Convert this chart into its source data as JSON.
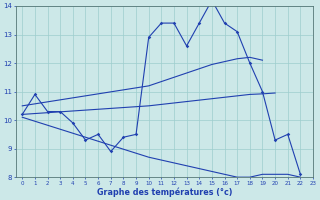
{
  "hours": [
    0,
    1,
    2,
    3,
    4,
    5,
    6,
    7,
    8,
    9,
    10,
    11,
    12,
    13,
    14,
    15,
    16,
    17,
    18,
    19,
    20,
    21,
    22,
    23
  ],
  "temp_actual": [
    10.2,
    10.9,
    10.3,
    10.3,
    9.9,
    9.3,
    9.5,
    8.9,
    9.4,
    9.5,
    12.9,
    13.4,
    13.4,
    12.6,
    13.4,
    14.2,
    13.4,
    13.1,
    12.0,
    11.0,
    9.3,
    9.5,
    8.1,
    null
  ],
  "trend_upper": [
    10.5,
    10.57,
    10.64,
    10.71,
    10.78,
    10.85,
    10.92,
    10.99,
    11.06,
    11.13,
    11.2,
    11.35,
    11.5,
    11.65,
    11.8,
    11.95,
    12.05,
    12.15,
    12.2,
    12.1,
    null,
    null,
    null,
    null
  ],
  "trend_mid": [
    10.2,
    10.23,
    10.26,
    10.29,
    10.32,
    10.35,
    10.38,
    10.41,
    10.44,
    10.47,
    10.5,
    10.55,
    10.6,
    10.65,
    10.7,
    10.75,
    10.8,
    10.85,
    10.9,
    10.92,
    10.95,
    null,
    null,
    null
  ],
  "trend_lower": [
    10.1,
    9.96,
    9.82,
    9.68,
    9.54,
    9.4,
    9.26,
    9.12,
    8.98,
    8.84,
    8.7,
    8.6,
    8.5,
    8.4,
    8.3,
    8.2,
    8.1,
    8.0,
    8.0,
    8.1,
    8.1,
    8.1,
    8.0,
    null
  ],
  "line_color": "#2040b0",
  "bg_color": "#cce8e8",
  "grid_color": "#9ecece",
  "xlabel": "Graphe des températures (°c)",
  "ylim": [
    8,
    14
  ],
  "xlim": [
    -0.5,
    23
  ],
  "yticks": [
    8,
    9,
    10,
    11,
    12,
    13,
    14
  ],
  "xticks": [
    0,
    1,
    2,
    3,
    4,
    5,
    6,
    7,
    8,
    9,
    10,
    11,
    12,
    13,
    14,
    15,
    16,
    17,
    18,
    19,
    20,
    21,
    22,
    23
  ]
}
